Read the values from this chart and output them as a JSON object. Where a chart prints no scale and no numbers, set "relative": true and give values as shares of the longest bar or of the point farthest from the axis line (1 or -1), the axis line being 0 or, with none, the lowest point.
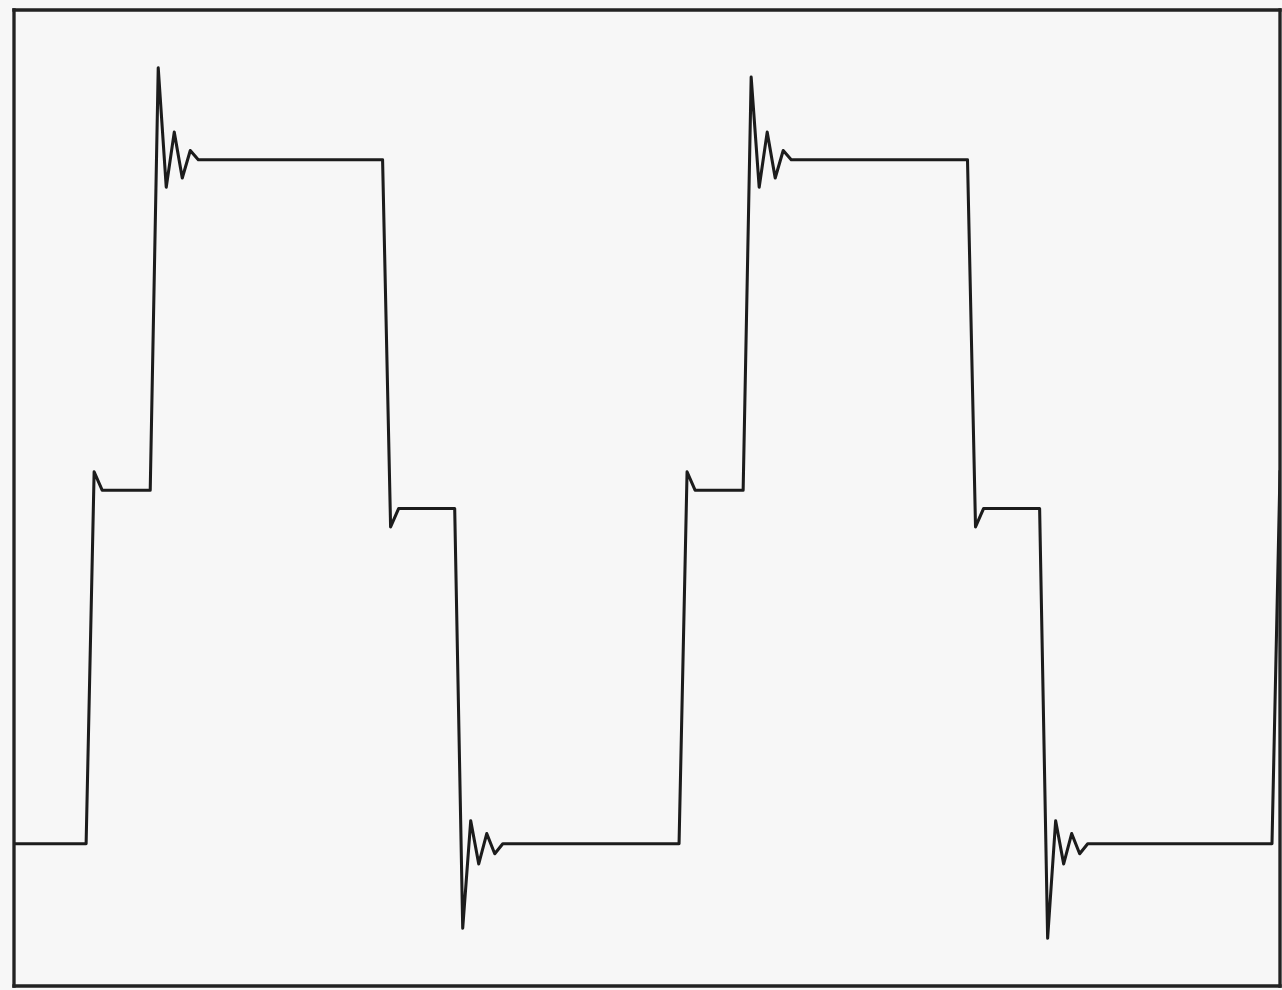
{
  "chart_data": {
    "type": "line",
    "relative": true,
    "tick_labels": false,
    "color": "#1c1c1c",
    "categories": [
      null,
      null,
      null,
      null,
      null,
      null,
      null,
      null,
      null,
      null,
      null,
      null,
      null,
      null,
      null,
      null,
      null,
      null,
      null,
      null,
      null,
      null,
      null,
      null,
      null,
      null,
      null,
      null,
      null,
      null,
      null,
      null,
      null,
      null,
      null,
      null,
      null,
      null,
      null,
      null,
      null,
      null,
      null,
      null,
      null,
      null,
      null,
      null,
      null,
      null,
      null,
      null,
      null,
      null,
      null,
      null,
      null,
      null,
      null,
      null,
      null,
      null,
      null,
      null,
      null,
      null,
      null,
      null,
      null,
      null,
      null,
      null,
      null,
      null,
      null,
      null,
      null,
      null,
      null,
      null,
      null,
      null,
      null,
      null,
      null,
      null,
      null,
      null,
      null,
      null,
      null,
      null,
      null,
      null,
      null,
      null,
      null,
      null,
      null,
      null,
      null,
      null,
      null,
      null,
      null,
      null,
      null,
      null,
      null,
      null,
      null,
      null,
      null,
      null,
      null,
      null,
      null,
      null,
      null,
      null,
      null,
      null,
      null,
      null,
      null,
      null,
      null,
      null,
      null,
      null,
      null,
      null,
      null,
      null,
      null,
      null,
      null,
      null,
      null,
      null,
      null,
      null,
      null,
      null,
      null,
      null,
      null,
      null,
      null,
      null,
      null,
      null,
      null,
      null,
      null,
      null,
      null,
      null,
      null
    ],
    "values": [
      0.155,
      0.155,
      0.155,
      0.155,
      0.155,
      0.155,
      0.155,
      0.155,
      0.155,
      0.155,
      0.56,
      0.54,
      0.54,
      0.54,
      0.54,
      0.54,
      0.54,
      0.54,
      1.0,
      0.87,
      0.93,
      0.88,
      0.91,
      0.9,
      0.9,
      0.9,
      0.9,
      0.9,
      0.9,
      0.9,
      0.9,
      0.9,
      0.9,
      0.9,
      0.9,
      0.9,
      0.9,
      0.9,
      0.9,
      0.9,
      0.9,
      0.9,
      0.9,
      0.9,
      0.9,
      0.9,
      0.9,
      0.5,
      0.52,
      0.52,
      0.52,
      0.52,
      0.52,
      0.52,
      0.52,
      0.52,
      0.063,
      0.18,
      0.133,
      0.166,
      0.144,
      0.155,
      0.155,
      0.155,
      0.155,
      0.155,
      0.155,
      0.155,
      0.155,
      0.155,
      0.155,
      0.155,
      0.155,
      0.155,
      0.155,
      0.155,
      0.155,
      0.155,
      0.155,
      0.155,
      0.155,
      0.155,
      0.155,
      0.155,
      0.56,
      0.54,
      0.54,
      0.54,
      0.54,
      0.54,
      0.54,
      0.54,
      0.99,
      0.87,
      0.93,
      0.88,
      0.91,
      0.9,
      0.9,
      0.9,
      0.9,
      0.9,
      0.9,
      0.9,
      0.9,
      0.9,
      0.9,
      0.9,
      0.9,
      0.9,
      0.9,
      0.9,
      0.9,
      0.9,
      0.9,
      0.9,
      0.9,
      0.9,
      0.9,
      0.9,
      0.5,
      0.52,
      0.52,
      0.52,
      0.52,
      0.52,
      0.52,
      0.52,
      0.52,
      0.052,
      0.18,
      0.133,
      0.166,
      0.144,
      0.155,
      0.155,
      0.155,
      0.155,
      0.155,
      0.155,
      0.155,
      0.155,
      0.155,
      0.155,
      0.155,
      0.155,
      0.155,
      0.155,
      0.155,
      0.155,
      0.155,
      0.155,
      0.155,
      0.155,
      0.155,
      0.155,
      0.155,
      0.155,
      0.56
    ]
  }
}
